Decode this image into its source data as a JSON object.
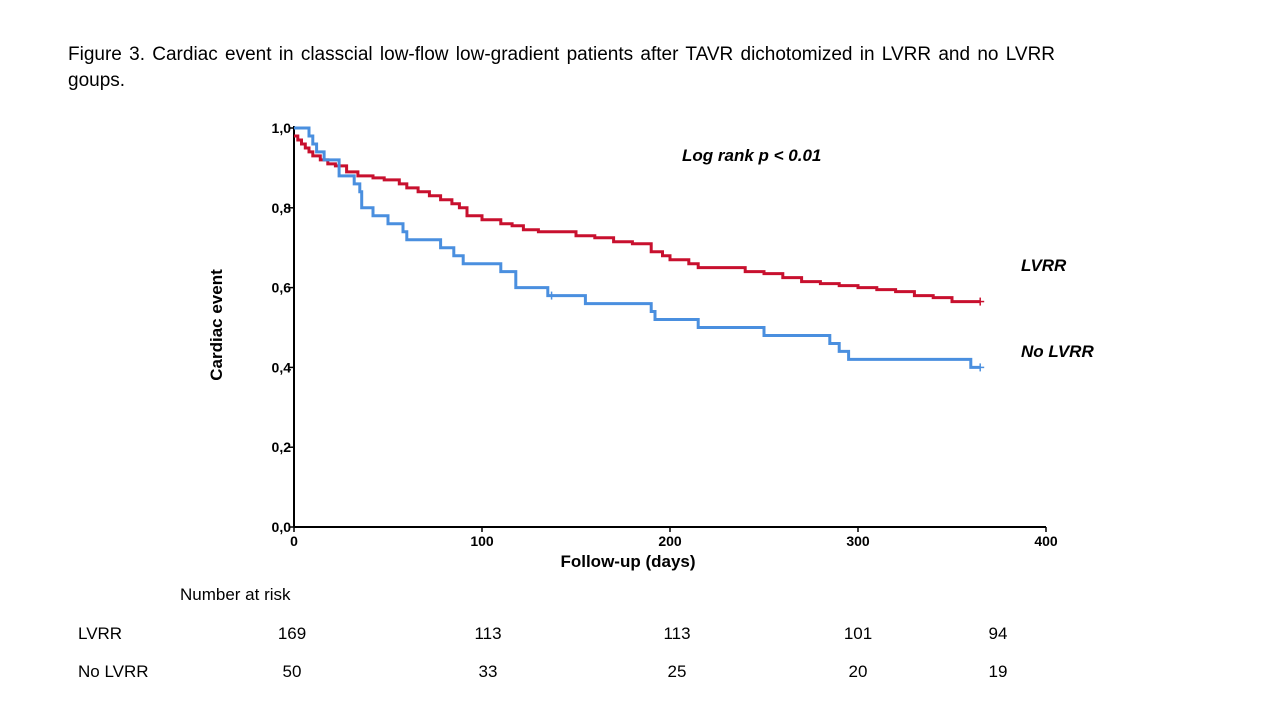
{
  "caption": "Figure 3. Cardiac event in classcial low-flow low-gradient patients after TAVR dichotomized in LVRR and no LVRR goups.",
  "chart_data": {
    "type": "line",
    "subtype": "kaplan-meier step",
    "xlabel": "Follow-up (days)",
    "ylabel": "Cardiac event",
    "xlim": [
      0,
      400
    ],
    "ylim": [
      0,
      1
    ],
    "x_ticks": [
      0,
      100,
      200,
      300,
      400
    ],
    "y_ticks": [
      0,
      0.2,
      0.4,
      0.6,
      0.8,
      1.0
    ],
    "x_tick_labels": [
      "0",
      "100",
      "200",
      "300",
      "400"
    ],
    "y_tick_labels": [
      "0,0",
      "0,2",
      "0,4",
      "0,6",
      "0,8",
      "1,0"
    ],
    "grid": false,
    "annotation": "Log rank p < 0.01",
    "series": [
      {
        "name": "LVRR",
        "color": "#c8102e",
        "x": [
          0,
          2,
          4,
          6,
          8,
          10,
          14,
          18,
          22,
          28,
          34,
          42,
          48,
          56,
          60,
          66,
          72,
          78,
          84,
          88,
          92,
          100,
          110,
          116,
          122,
          130,
          150,
          160,
          170,
          180,
          190,
          196,
          200,
          210,
          215,
          240,
          250,
          260,
          270,
          280,
          290,
          300,
          310,
          320,
          330,
          340,
          350,
          365
        ],
        "y": [
          0.98,
          0.97,
          0.96,
          0.95,
          0.94,
          0.93,
          0.92,
          0.91,
          0.905,
          0.89,
          0.88,
          0.875,
          0.87,
          0.86,
          0.85,
          0.84,
          0.83,
          0.82,
          0.81,
          0.8,
          0.78,
          0.77,
          0.76,
          0.755,
          0.745,
          0.74,
          0.73,
          0.725,
          0.715,
          0.71,
          0.69,
          0.68,
          0.67,
          0.66,
          0.65,
          0.64,
          0.635,
          0.625,
          0.615,
          0.61,
          0.605,
          0.6,
          0.595,
          0.59,
          0.58,
          0.575,
          0.565,
          0.565
        ],
        "censor_x": [
          365
        ]
      },
      {
        "name": "No LVRR",
        "color": "#4a8fdf",
        "x": [
          0,
          8,
          10,
          12,
          16,
          24,
          32,
          35,
          36,
          42,
          50,
          58,
          60,
          78,
          85,
          90,
          110,
          118,
          135,
          155,
          190,
          192,
          215,
          250,
          285,
          290,
          295,
          360,
          365
        ],
        "y": [
          1.0,
          0.98,
          0.96,
          0.94,
          0.92,
          0.88,
          0.86,
          0.84,
          0.8,
          0.78,
          0.76,
          0.74,
          0.72,
          0.7,
          0.68,
          0.66,
          0.64,
          0.6,
          0.58,
          0.56,
          0.54,
          0.52,
          0.5,
          0.48,
          0.46,
          0.44,
          0.42,
          0.4,
          0.4
        ],
        "censor_x": [
          137,
          365
        ]
      }
    ],
    "at_risk": {
      "heading": "Number at risk",
      "rows": [
        {
          "label": "LVRR",
          "values": [
            "169",
            "113",
            "113",
            "101",
            "94"
          ]
        },
        {
          "label": "No LVRR",
          "values": [
            "50",
            "33",
            "25",
            "20",
            "19"
          ]
        }
      ]
    }
  }
}
